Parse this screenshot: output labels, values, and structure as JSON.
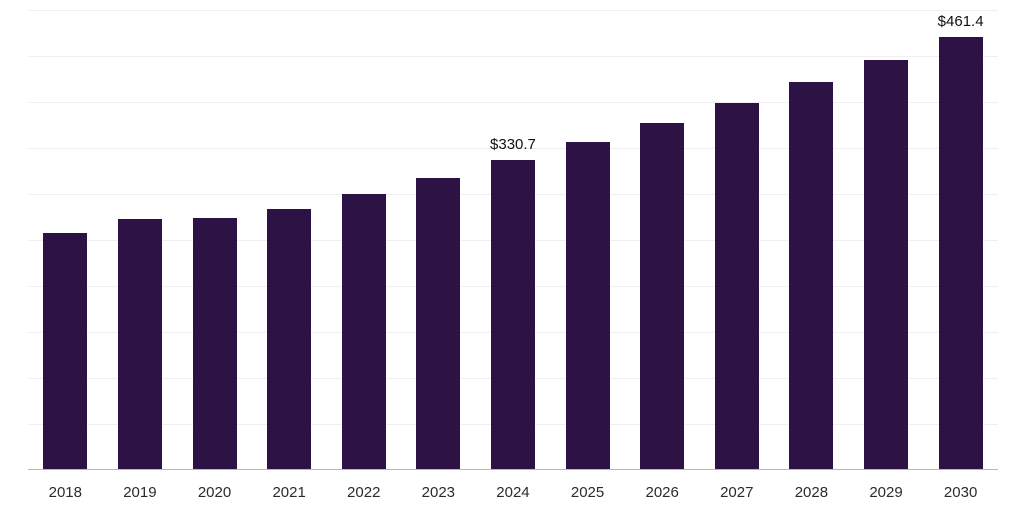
{
  "chart_data": {
    "type": "bar",
    "title": "",
    "xlabel": "",
    "ylabel": "",
    "categories": [
      "2018",
      "2019",
      "2020",
      "2021",
      "2022",
      "2023",
      "2024",
      "2025",
      "2026",
      "2027",
      "2028",
      "2029",
      "2030"
    ],
    "values": [
      252.4,
      267.5,
      268.0,
      277.9,
      294.0,
      311.2,
      330.7,
      349.6,
      369.6,
      390.7,
      413.0,
      436.6,
      461.4
    ],
    "data_labels": [
      null,
      null,
      null,
      null,
      null,
      null,
      "$330.7",
      null,
      null,
      null,
      null,
      null,
      "$461.4"
    ],
    "value_prefix": "$",
    "ylim": [
      0,
      490
    ],
    "grid": true,
    "gridline_count": 10,
    "legend": "none",
    "bar_color": "#2d1245",
    "gridline_color": "#efefef",
    "axis_line_color": "#b7b7b7",
    "label_color": "#2b2b2b"
  }
}
